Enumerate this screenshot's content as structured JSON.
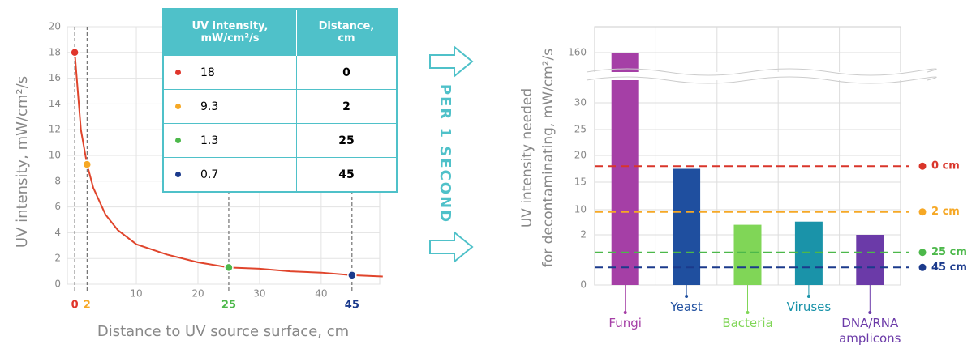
{
  "chart_data": [
    {
      "type": "line",
      "ylabel": "UV intensity, mW/cm²/s",
      "xlabel": "Distance to UV source surface, cm",
      "x": [
        0,
        1,
        2,
        3,
        5,
        7,
        10,
        15,
        20,
        25,
        30,
        35,
        40,
        45,
        50
      ],
      "series": [
        {
          "color": "#e0452c",
          "values": [
            18,
            12,
            9.3,
            7.5,
            5.4,
            4.2,
            3.1,
            2.3,
            1.7,
            1.3,
            1.2,
            1.0,
            0.9,
            0.7,
            0.6
          ]
        }
      ],
      "highlights": {
        "x": [
          0,
          2,
          25,
          45
        ],
        "values": [
          18,
          9.3,
          1.3,
          0.7
        ],
        "colors": [
          "#e0352b",
          "#f6a825",
          "#4cb84a",
          "#1b3a8c"
        ]
      },
      "xlim": [
        -1.2,
        49.5
      ],
      "ylim": [
        0,
        20
      ],
      "xticks": [
        10,
        20,
        30,
        40
      ],
      "yticks": [
        0,
        2,
        4,
        6,
        8,
        10,
        12,
        14,
        16,
        18,
        20
      ],
      "grid": true
    },
    {
      "type": "bar",
      "ylabel": [
        "UV intensity needed",
        "for decontaminating, mW/cm²/s"
      ],
      "categories": [
        "Fungi",
        "Yeast",
        "Bacteria",
        "Viruses",
        "DNA/RNA amplicons"
      ],
      "values": [
        160,
        17.5,
        5.2,
        6.2,
        2
      ],
      "colors": [
        "#a53fa6",
        "#1f4f9f",
        "#80d657",
        "#1a93a9",
        "#6b3aa8"
      ],
      "ylim": [
        0,
        160
      ],
      "yticks": [
        0,
        2,
        10,
        15,
        20,
        25,
        30,
        160
      ],
      "axis_break": true,
      "grid": true,
      "reference_lines": [
        {
          "label": "0 cm",
          "value": 18,
          "color": "#d9352a"
        },
        {
          "label": "2 cm",
          "value": 9.3,
          "color": "#f6a825"
        },
        {
          "label": "25 cm",
          "value": 1.3,
          "color": "#4cb84a"
        },
        {
          "label": "45 cm",
          "value": 0.7,
          "color": "#1b3a8c"
        }
      ]
    }
  ],
  "table": {
    "header": [
      "UV intensity, mW/cm²/s",
      "Distance, cm"
    ],
    "rows": [
      [
        18,
        0
      ],
      [
        9.3,
        2
      ],
      [
        1.3,
        25
      ],
      [
        0.7,
        45
      ]
    ]
  },
  "caption": "PER 1 SECOND"
}
